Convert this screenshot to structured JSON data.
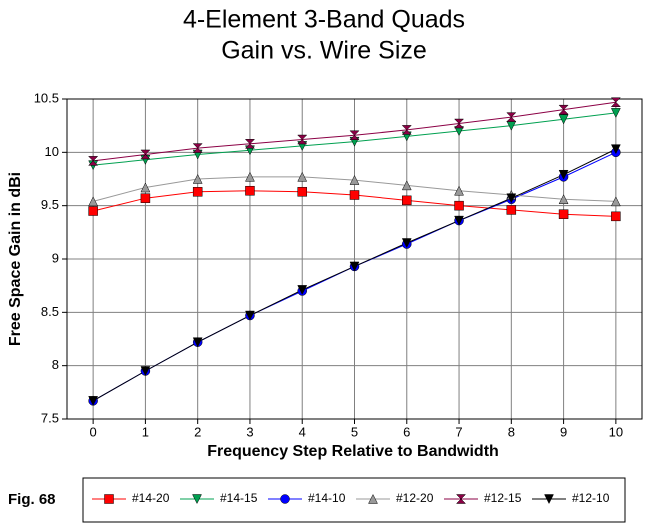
{
  "chart_data": {
    "type": "line",
    "title": "4-Element 3-Band Quads",
    "subtitle": "Gain vs. Wire Size",
    "x_label": "Frequency Step Relative to Bandwidth",
    "y_label": "Free Space Gain in dBi",
    "annotation": "Fig. 68",
    "x": [
      0,
      1,
      2,
      3,
      4,
      5,
      6,
      7,
      8,
      9,
      10
    ],
    "xlim": [
      -0.5,
      10.5
    ],
    "xticks": [
      0,
      1,
      2,
      3,
      4,
      5,
      6,
      7,
      8,
      9,
      10
    ],
    "ylim": [
      7.5,
      10.5
    ],
    "yticks": [
      7.5,
      8,
      8.5,
      9,
      9.5,
      10,
      10.5
    ],
    "grid": true,
    "legend": "bottom",
    "series": [
      {
        "name": "#14-20",
        "color": "#ff0000",
        "marker": "square",
        "values": [
          9.45,
          9.57,
          9.63,
          9.64,
          9.63,
          9.6,
          9.55,
          9.5,
          9.46,
          9.42,
          9.4
        ]
      },
      {
        "name": "#14-15",
        "color": "#00a050",
        "marker": "triangle-down",
        "values": [
          9.88,
          9.93,
          9.98,
          10.02,
          10.06,
          10.1,
          10.15,
          10.2,
          10.25,
          10.31,
          10.37
        ]
      },
      {
        "name": "#14-10",
        "color": "#0000ff",
        "marker": "circle",
        "values": [
          7.67,
          7.95,
          8.22,
          8.47,
          8.7,
          8.93,
          9.14,
          9.36,
          9.56,
          9.77,
          10.0
        ]
      },
      {
        "name": "#12-20",
        "color": "#999999",
        "marker": "triangle-up",
        "values": [
          9.54,
          9.67,
          9.75,
          9.77,
          9.77,
          9.74,
          9.69,
          9.64,
          9.6,
          9.56,
          9.54
        ]
      },
      {
        "name": "#12-15",
        "color": "#8b0045",
        "marker": "hourglass",
        "values": [
          9.92,
          9.98,
          10.04,
          10.08,
          10.12,
          10.16,
          10.21,
          10.27,
          10.33,
          10.4,
          10.47
        ]
      },
      {
        "name": "#12-10",
        "color": "#000000",
        "marker": "triangle-down",
        "values": [
          7.67,
          7.95,
          8.22,
          8.47,
          8.71,
          8.93,
          9.15,
          9.36,
          9.57,
          9.79,
          10.03
        ]
      }
    ]
  }
}
